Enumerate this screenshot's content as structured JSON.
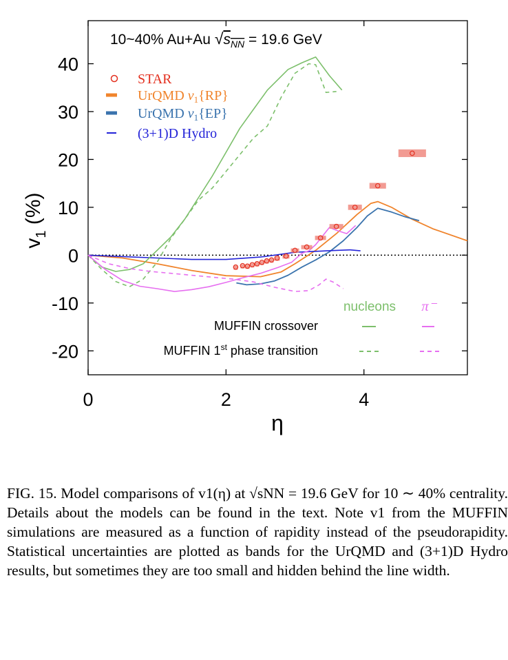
{
  "chart_data": {
    "type": "line",
    "title": "10~40% Au+Au √s_NN = 19.6 GeV",
    "xlabel": "η",
    "ylabel": "v1 (%)",
    "xlim": [
      0,
      5.5
    ],
    "ylim": [
      -25,
      49
    ],
    "xticks": [
      "0",
      "2",
      "4"
    ],
    "yticks": [
      "40",
      "30",
      "20",
      "10",
      "0",
      "-10",
      "-20"
    ],
    "legend": {
      "placement": "top-left",
      "entries": [
        "STAR",
        "UrQMD v1{RP}",
        "UrQMD v1{EP}",
        "(3+1)D Hydro"
      ]
    },
    "muffin_legend": {
      "col_nucleons": "nucleons",
      "col_pion": "π⁻",
      "row_crossover": "MUFFIN crossover",
      "row_first_order": "MUFFIN 1st phase transition"
    },
    "colors": {
      "star": "#e3301f",
      "star_band": "#f08a80",
      "urqmd_rp": "#f0842c",
      "urqmd_ep": "#3a73ad",
      "hydro": "#2323d8",
      "nucleons": "#7cbf6b",
      "pion": "#e66ef0"
    },
    "series": [
      {
        "name": "STAR",
        "kind": "points",
        "x": [
          2.14,
          2.24,
          2.31,
          2.38,
          2.45,
          2.52,
          2.59,
          2.66,
          2.74,
          2.87,
          3.0,
          3.17,
          3.37,
          3.6,
          3.87,
          4.2,
          4.7
        ],
        "y": [
          -2.5,
          -2.2,
          -2.3,
          -2.0,
          -1.8,
          -1.5,
          -1.2,
          -1.0,
          -0.6,
          -0.2,
          1.0,
          1.7,
          3.6,
          6.0,
          10.0,
          14.5,
          21.3
        ],
        "xerr": [
          0.03,
          0.03,
          0.03,
          0.03,
          0.03,
          0.03,
          0.03,
          0.03,
          0.04,
          0.05,
          0.06,
          0.08,
          0.08,
          0.1,
          0.1,
          0.12,
          0.2
        ],
        "yerr": [
          0.3,
          0.3,
          0.3,
          0.3,
          0.3,
          0.3,
          0.3,
          0.3,
          0.3,
          0.35,
          0.4,
          0.4,
          0.45,
          0.5,
          0.55,
          0.6,
          0.8
        ]
      },
      {
        "name": "UrQMD v1{RP}",
        "kind": "line",
        "x": [
          0,
          0.5,
          1.0,
          1.5,
          2.0,
          2.5,
          2.8,
          3.0,
          3.3,
          3.6,
          3.9,
          4.1,
          4.2,
          4.4,
          4.7,
          5.0,
          5.5
        ],
        "y": [
          0,
          -0.6,
          -1.8,
          -3.2,
          -4.3,
          -4.5,
          -3.5,
          -1.8,
          1.0,
          4.5,
          8.5,
          10.8,
          11.2,
          10.0,
          7.5,
          5.5,
          3.0
        ]
      },
      {
        "name": "UrQMD v1{EP}",
        "kind": "line",
        "x": [
          2.15,
          2.3,
          2.5,
          2.7,
          2.9,
          3.1,
          3.3,
          3.5,
          3.7,
          3.9,
          4.05,
          4.2,
          4.4,
          4.6,
          4.8
        ],
        "y": [
          -5.8,
          -6.2,
          -6.0,
          -5.4,
          -4.2,
          -2.5,
          -1.0,
          0.7,
          3.0,
          5.8,
          8.2,
          9.8,
          9.0,
          8.0,
          7.2
        ]
      },
      {
        "name": "(3+1)D Hydro",
        "kind": "line",
        "x": [
          0,
          0.5,
          1.0,
          1.5,
          2.0,
          2.5,
          2.8,
          3.0,
          3.3,
          3.6,
          3.8,
          3.95
        ],
        "y": [
          0,
          -0.3,
          -0.6,
          -0.9,
          -0.9,
          -0.4,
          0.2,
          0.6,
          0.8,
          1.0,
          1.1,
          0.9
        ]
      },
      {
        "name": "MUFFIN crossover nucleons",
        "kind": "line",
        "x": [
          0,
          0.2,
          0.4,
          0.6,
          0.8,
          1.0,
          1.2,
          1.4,
          1.6,
          1.8,
          2.0,
          2.2,
          2.4,
          2.6,
          2.9,
          3.1,
          3.3,
          3.5,
          3.68
        ],
        "y": [
          0,
          -2.5,
          -3.4,
          -3.0,
          -1.8,
          1.0,
          3.8,
          7.5,
          12.0,
          16.5,
          21.5,
          26.5,
          30.5,
          34.5,
          38.8,
          40.2,
          41.4,
          37.5,
          34.5
        ]
      },
      {
        "name": "MUFFIN 1st order nucleons",
        "kind": "dashed",
        "x": [
          0,
          0.2,
          0.4,
          0.6,
          0.8,
          1.0,
          1.2,
          1.4,
          1.6,
          1.8,
          2.0,
          2.2,
          2.4,
          2.6,
          2.8,
          3.0,
          3.2,
          3.3,
          3.45,
          3.6
        ],
        "y": [
          0,
          -3.0,
          -5.5,
          -6.6,
          -5.0,
          -1.5,
          3.5,
          7.5,
          11.5,
          14.0,
          17.5,
          21.0,
          24.5,
          27.0,
          33.0,
          38.0,
          40.0,
          39.8,
          34.0,
          34.2
        ]
      },
      {
        "name": "MUFFIN crossover pion",
        "kind": "line",
        "x": [
          0,
          0.25,
          0.5,
          0.75,
          1.0,
          1.25,
          1.5,
          1.75,
          2.0,
          2.25,
          2.5,
          2.75,
          2.95,
          3.1,
          3.2,
          3.3,
          3.5,
          3.6,
          3.75,
          3.88
        ],
        "y": [
          0,
          -3.0,
          -5.3,
          -6.5,
          -7.0,
          -7.6,
          -7.2,
          -6.6,
          -5.7,
          -4.7,
          -3.8,
          -2.6,
          -1.5,
          0.4,
          0.9,
          2.2,
          5.8,
          5.2,
          4.5,
          6.2
        ]
      },
      {
        "name": "MUFFIN 1st order pion",
        "kind": "dashed",
        "x": [
          0,
          0.3,
          0.6,
          0.9,
          1.2,
          1.5,
          1.8,
          2.1,
          2.4,
          2.7,
          3.0,
          3.2,
          3.35,
          3.45,
          3.55,
          3.7
        ],
        "y": [
          0,
          -1.8,
          -2.8,
          -3.4,
          -3.8,
          -4.2,
          -4.6,
          -5.0,
          -5.6,
          -6.7,
          -7.6,
          -7.4,
          -6.2,
          -5.0,
          -5.6,
          -7.0
        ]
      }
    ]
  },
  "caption": {
    "text": "FIG. 15.  Model comparisons of v1(η) at √sNN = 19.6 GeV for 10 ∼ 40% centrality.  Details about the models can be found in the text. Note v1 from the MUFFIN simulations are measured as a function of rapidity instead of the pseudorapidity. Statistical uncertainties are plotted as bands for the UrQMD and (3+1)D Hydro results, but sometimes they are too small and hidden behind the line width."
  }
}
